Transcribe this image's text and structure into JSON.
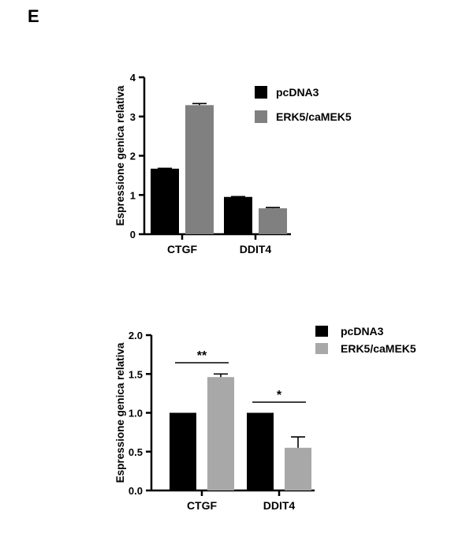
{
  "panel_label": "E",
  "chart_data": [
    {
      "type": "bar",
      "ylabel": "Espressione genica relativa",
      "ylim": [
        0,
        4
      ],
      "yticks": [
        "0",
        "1",
        "2",
        "3",
        "4"
      ],
      "categories": [
        "CTGF",
        "DDIT4"
      ],
      "series": [
        {
          "name": "pcDNA3",
          "color": "#000000",
          "values": [
            1.67,
            0.95
          ],
          "errors": [
            0.01,
            0.01
          ]
        },
        {
          "name": "ERK5/caMEK5",
          "color": "#808080",
          "values": [
            3.29,
            0.66
          ],
          "errors": [
            0.04,
            0.02
          ]
        }
      ],
      "legend": "top-right",
      "grid": false
    },
    {
      "type": "bar",
      "ylabel": "Espressione genica relativa",
      "ylim": [
        0,
        2
      ],
      "yticks": [
        "0.0",
        "0.5",
        "1.0",
        "1.5",
        "2.0"
      ],
      "categories": [
        "CTGF",
        "DDIT4"
      ],
      "series": [
        {
          "name": "pcDNA3",
          "color": "#000000",
          "values": [
            1.0,
            1.0
          ],
          "errors": [
            0,
            0
          ]
        },
        {
          "name": "ERK5/caMEK5",
          "color": "#a8a8a8",
          "values": [
            1.46,
            0.55
          ],
          "errors": [
            0.04,
            0.14
          ]
        }
      ],
      "significance": [
        "**",
        "*"
      ],
      "legend": "top-right",
      "grid": false
    }
  ]
}
